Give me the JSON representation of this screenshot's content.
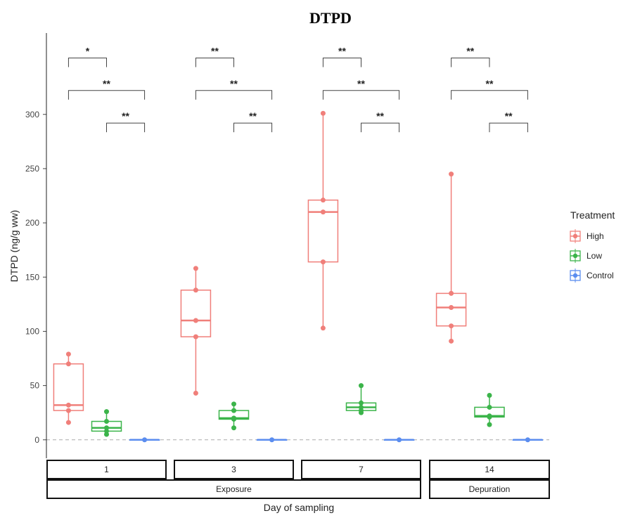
{
  "chart_data": {
    "type": "box",
    "title": "DTPD",
    "xlabel": "Day of sampling",
    "ylabel": "DTPD (ng/g ww)",
    "ylim": [
      -17,
      375
    ],
    "yticks": [
      0,
      50,
      100,
      150,
      200,
      250,
      300
    ],
    "reference_line": 0,
    "grid": false,
    "legend": {
      "title": "Treatment",
      "placement": "right",
      "entries": [
        "High",
        "Low",
        "Control"
      ]
    },
    "colors": {
      "High": "#f07f7a",
      "Low": "#3bb44a",
      "Control": "#5b8def"
    },
    "facets": [
      {
        "day": "1",
        "phase": "Exposure"
      },
      {
        "day": "3",
        "phase": "Exposure"
      },
      {
        "day": "7",
        "phase": "Exposure"
      },
      {
        "day": "14",
        "phase": "Depuration"
      }
    ],
    "phases": [
      "Exposure",
      "Depuration"
    ],
    "series": [
      {
        "name": "High",
        "boxes": [
          {
            "day": "1",
            "q1": 27,
            "median": 32,
            "q3": 70,
            "min": 16,
            "max": 79,
            "points": [
              16,
              27,
              32,
              70,
              79
            ]
          },
          {
            "day": "3",
            "q1": 95,
            "median": 110,
            "q3": 138,
            "min": 43,
            "max": 158,
            "points": [
              43,
              95,
              110,
              138,
              158
            ]
          },
          {
            "day": "7",
            "q1": 164,
            "median": 210,
            "q3": 221,
            "min": 103,
            "max": 301,
            "points": [
              103,
              164,
              210,
              221,
              301
            ]
          },
          {
            "day": "14",
            "q1": 105,
            "median": 122,
            "q3": 135,
            "min": 91,
            "max": 245,
            "points": [
              91,
              105,
              122,
              135,
              245
            ]
          }
        ]
      },
      {
        "name": "Low",
        "boxes": [
          {
            "day": "1",
            "q1": 8,
            "median": 11,
            "q3": 17,
            "min": 5,
            "max": 26,
            "points": [
              5,
              8,
              11,
              17,
              26
            ]
          },
          {
            "day": "3",
            "q1": 19,
            "median": 20,
            "q3": 27,
            "min": 11,
            "max": 33,
            "points": [
              11,
              19,
              20,
              27,
              33
            ]
          },
          {
            "day": "7",
            "q1": 27,
            "median": 30,
            "q3": 34,
            "min": 25,
            "max": 50,
            "points": [
              25,
              27,
              30,
              34,
              50
            ]
          },
          {
            "day": "14",
            "q1": 21,
            "median": 22,
            "q3": 30,
            "min": 14,
            "max": 41,
            "points": [
              14,
              21,
              22,
              30,
              41
            ]
          }
        ]
      },
      {
        "name": "Control",
        "boxes": [
          {
            "day": "1",
            "q1": 0,
            "median": 0,
            "q3": 0,
            "min": 0,
            "max": 0,
            "points": [
              0
            ]
          },
          {
            "day": "3",
            "q1": 0,
            "median": 0,
            "q3": 0,
            "min": 0,
            "max": 0,
            "points": [
              0
            ]
          },
          {
            "day": "7",
            "q1": 0,
            "median": 0,
            "q3": 0,
            "min": 0,
            "max": 0,
            "points": [
              0
            ]
          },
          {
            "day": "14",
            "q1": 0,
            "median": 0,
            "q3": 0,
            "min": 0,
            "max": 0,
            "points": [
              0
            ]
          }
        ]
      }
    ],
    "significance": [
      {
        "day": "1",
        "comparisons": [
          {
            "from": "High",
            "to": "Low",
            "label": "*"
          },
          {
            "from": "High",
            "to": "Control",
            "label": "**"
          },
          {
            "from": "Low",
            "to": "Control",
            "label": "**"
          }
        ]
      },
      {
        "day": "3",
        "comparisons": [
          {
            "from": "High",
            "to": "Low",
            "label": "**"
          },
          {
            "from": "High",
            "to": "Control",
            "label": "**"
          },
          {
            "from": "Low",
            "to": "Control",
            "label": "**"
          }
        ]
      },
      {
        "day": "7",
        "comparisons": [
          {
            "from": "High",
            "to": "Low",
            "label": "**"
          },
          {
            "from": "High",
            "to": "Control",
            "label": "**"
          },
          {
            "from": "Low",
            "to": "Control",
            "label": "**"
          }
        ]
      },
      {
        "day": "14",
        "comparisons": [
          {
            "from": "High",
            "to": "Low",
            "label": "**"
          },
          {
            "from": "High",
            "to": "Control",
            "label": "**"
          },
          {
            "from": "Low",
            "to": "Control",
            "label": "**"
          }
        ]
      }
    ]
  }
}
